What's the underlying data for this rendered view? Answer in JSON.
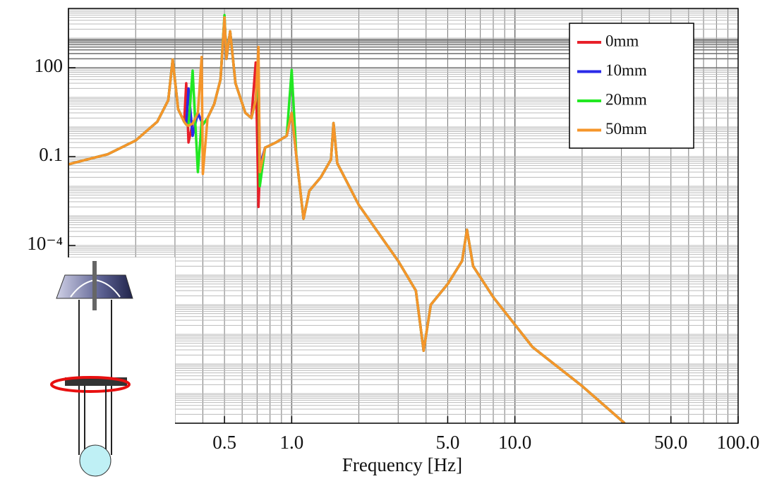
{
  "chart_data": {
    "type": "line",
    "x_label": "Frequency [Hz]",
    "log_x": true,
    "log_y": true,
    "grid": true,
    "legend_position": "upper right",
    "xlim": [
      0.1,
      100
    ],
    "ylim": [
      1e-10,
      10000
    ],
    "xticks": [
      0.5,
      {
        "value": 1,
        "label": "1.0"
      },
      {
        "value": 5,
        "label": "5.0"
      },
      {
        "value": 10,
        "label": "10.0"
      },
      {
        "value": 50,
        "label": "50.0"
      },
      {
        "value": 100,
        "label": "100.0"
      }
    ],
    "yticks": [
      {
        "value": 0.0001,
        "label": "10⁻⁴"
      },
      0.1,
      100
    ],
    "x": [
      0.1,
      0.15,
      0.2,
      0.25,
      0.28,
      0.293,
      0.31,
      0.33,
      0.337,
      0.345,
      0.36,
      0.38,
      0.395,
      0.4,
      0.42,
      0.45,
      0.48,
      0.5,
      0.51,
      0.53,
      0.56,
      0.62,
      0.66,
      0.69,
      0.71,
      0.72,
      0.76,
      0.85,
      0.95,
      1.0,
      1.05,
      1.13,
      1.2,
      1.35,
      1.5,
      1.54,
      1.6,
      2.0,
      3.0,
      3.6,
      3.9,
      4.2,
      5.0,
      5.8,
      6.1,
      6.5,
      8.0,
      12,
      20,
      31
    ],
    "series": [
      {
        "name": "0mm",
        "color": "#e8202a",
        "values": [
          0.055,
          0.12,
          0.35,
          1.5,
          8,
          190,
          4,
          1.5,
          30,
          0.3,
          1.3,
          3,
          1.5,
          1.2,
          2,
          6,
          40,
          5000,
          200,
          1700,
          30,
          3,
          2,
          150,
          0.002,
          0.03,
          0.2,
          0.3,
          0.5,
          3,
          0.1,
          0.0008,
          0.007,
          0.02,
          0.08,
          1.35,
          0.06,
          0.0023,
          3e-05,
          3e-06,
          2.8e-08,
          1e-06,
          5e-06,
          3e-05,
          0.00034,
          2e-05,
          1.8e-06,
          3.7e-08,
          1.8e-09,
          1e-10
        ]
      },
      {
        "name": "10mm",
        "color": "#2a2ae8",
        "values": [
          0.055,
          0.12,
          0.35,
          1.5,
          8,
          190,
          4,
          1.5,
          1.2,
          20,
          0.5,
          3,
          1.5,
          1.2,
          2,
          6,
          40,
          5000,
          200,
          1700,
          30,
          3,
          2,
          8,
          60,
          0.05,
          0.2,
          0.3,
          0.5,
          3,
          0.1,
          0.0008,
          0.007,
          0.02,
          0.08,
          1.35,
          0.06,
          0.0023,
          3e-05,
          3e-06,
          2.8e-08,
          1e-06,
          5e-06,
          3e-05,
          0.00034,
          2e-05,
          1.8e-06,
          3.7e-08,
          1.8e-09,
          1e-10
        ]
      },
      {
        "name": "20mm",
        "color": "#22e822",
        "values": [
          0.055,
          0.12,
          0.35,
          1.5,
          8,
          190,
          4,
          1.5,
          1.2,
          1.1,
          80,
          0.03,
          1.5,
          1.2,
          2,
          6,
          40,
          6000,
          200,
          1700,
          30,
          3,
          2,
          8,
          40,
          0.01,
          0.2,
          0.3,
          0.5,
          85,
          0.1,
          0.0008,
          0.007,
          0.02,
          0.08,
          1.35,
          0.06,
          0.0023,
          3e-05,
          3e-06,
          2.8e-08,
          1e-06,
          5e-06,
          3e-05,
          0.00034,
          2e-05,
          1.8e-06,
          3.7e-08,
          1.8e-09,
          1e-10
        ]
      },
      {
        "name": "50mm",
        "color": "#f5952a",
        "values": [
          0.055,
          0.12,
          0.35,
          1.5,
          8,
          190,
          4,
          1.5,
          1.2,
          1.1,
          1.3,
          3,
          230,
          0.026,
          2,
          6,
          40,
          5000,
          200,
          1700,
          30,
          3,
          2,
          8,
          500,
          0.03,
          0.2,
          0.3,
          0.5,
          3,
          0.1,
          0.0008,
          0.007,
          0.02,
          0.08,
          1.35,
          0.06,
          0.0023,
          3e-05,
          3e-06,
          2.8e-08,
          1e-06,
          5e-06,
          3e-05,
          0.00034,
          2e-05,
          1.8e-06,
          3.7e-08,
          1.8e-09,
          1e-10
        ]
      }
    ]
  }
}
